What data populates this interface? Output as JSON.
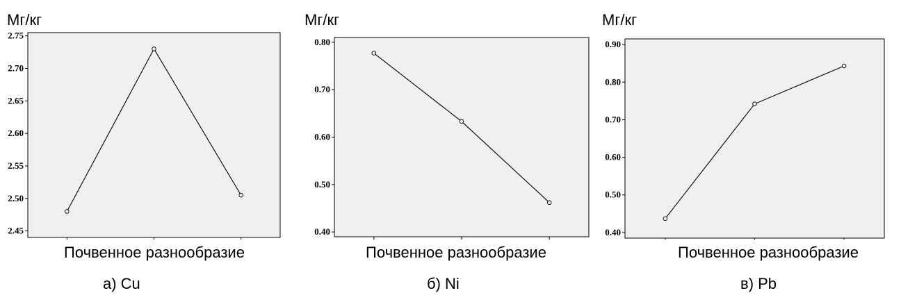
{
  "chart_data": [
    {
      "type": "line",
      "title": "",
      "caption": "а) Cu",
      "ylabel": "Мг/кг",
      "xlabel": "Почвенное разнообразие",
      "x": [
        1,
        2,
        3
      ],
      "y": [
        2.48,
        2.73,
        2.505
      ],
      "xticks": [
        "1",
        "2",
        "3"
      ],
      "yticks": [
        "2.45",
        "2.50",
        "2.55",
        "2.60",
        "2.65",
        "2.70",
        "2.75"
      ],
      "ylim": [
        2.44,
        2.755
      ],
      "xlim": [
        0.55,
        3.45
      ],
      "grid": false,
      "line_color": "#000000",
      "plot_background": "#f0f0f0"
    },
    {
      "type": "line",
      "title": "",
      "caption": "б) Ni",
      "ylabel": "Мг/кг",
      "xlabel": "Почвенное разнообразие",
      "x": [
        1,
        2,
        3
      ],
      "y": [
        0.777,
        0.633,
        0.462
      ],
      "xticks": [
        "1",
        "2",
        "3"
      ],
      "yticks": [
        "0.40",
        "0.50",
        "0.60",
        "0.70",
        "0.80"
      ],
      "ylim": [
        0.39,
        0.81
      ],
      "xlim": [
        0.55,
        3.45
      ],
      "grid": false,
      "line_color": "#000000",
      "plot_background": "#f0f0f0"
    },
    {
      "type": "line",
      "title": "",
      "caption": "в) Pb",
      "ylabel": "Мг/кг",
      "xlabel": "Почвенное разнообразие",
      "x": [
        1,
        2,
        3
      ],
      "y": [
        0.437,
        0.742,
        0.843
      ],
      "xticks": [
        "1",
        "2",
        "3"
      ],
      "yticks": [
        "0.40",
        "0.50",
        "0.60",
        "0.70",
        "0.80",
        "0.90"
      ],
      "ylim": [
        0.385,
        0.915
      ],
      "xlim": [
        0.55,
        3.45
      ],
      "grid": false,
      "line_color": "#000000",
      "plot_background": "#f0f0f0"
    }
  ]
}
